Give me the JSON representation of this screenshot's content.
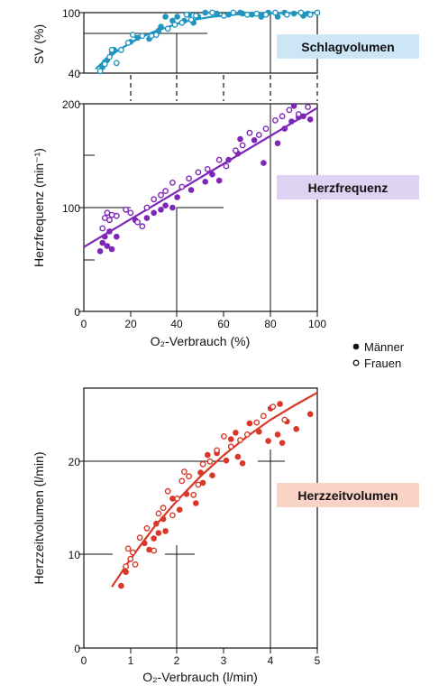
{
  "legend": {
    "men": "Männer",
    "women": "Frauen"
  },
  "chart_data": [
    {
      "type": "scatter",
      "title": "Schlagvolumen",
      "ylabel": "SV (%)",
      "xlabel": "",
      "xlim": [
        0,
        100
      ],
      "ylim": [
        40,
        100
      ],
      "yticks": [
        40,
        100
      ],
      "color": "#1f95c0",
      "badge_bg": "#cce6f5",
      "series": [
        {
          "name": "Männer",
          "marker": "filled",
          "points": [
            [
              8,
              46
            ],
            [
              9,
              51
            ],
            [
              10,
              53
            ],
            [
              12,
              60
            ],
            [
              13,
              63
            ],
            [
              20,
              71
            ],
            [
              23,
              75
            ],
            [
              28,
              74
            ],
            [
              32,
              82
            ],
            [
              33,
              86
            ],
            [
              35,
              96
            ],
            [
              38,
              92
            ],
            [
              40,
              96
            ],
            [
              43,
              92
            ],
            [
              45,
              98
            ],
            [
              47,
              90
            ],
            [
              49,
              96
            ],
            [
              52,
              100
            ],
            [
              57,
              99
            ],
            [
              62,
              98
            ],
            [
              67,
              100
            ],
            [
              68,
              99
            ],
            [
              72,
              98
            ],
            [
              76,
              96
            ],
            [
              79,
              100
            ],
            [
              83,
              96
            ],
            [
              86,
              100
            ],
            [
              90,
              99
            ],
            [
              94,
              97
            ],
            [
              96,
              99
            ]
          ]
        },
        {
          "name": "Frauen",
          "marker": "open",
          "points": [
            [
              7,
              42
            ],
            [
              9,
              49
            ],
            [
              11,
              56
            ],
            [
              12,
              63
            ],
            [
              14,
              50
            ],
            [
              16,
              63
            ],
            [
              19,
              70
            ],
            [
              21,
              78
            ],
            [
              25,
              77
            ],
            [
              29,
              77
            ],
            [
              31,
              78
            ],
            [
              36,
              84
            ],
            [
              39,
              88
            ],
            [
              42,
              90
            ],
            [
              44,
              98
            ],
            [
              46,
              93
            ],
            [
              48,
              97
            ],
            [
              55,
              100
            ],
            [
              60,
              97
            ],
            [
              64,
              100
            ],
            [
              70,
              98
            ],
            [
              74,
              99
            ],
            [
              78,
              98
            ],
            [
              82,
              100
            ],
            [
              87,
              98
            ],
            [
              93,
              100
            ],
            [
              97,
              98
            ],
            [
              100,
              100
            ]
          ]
        }
      ],
      "fit": [
        [
          5,
          44
        ],
        [
          10,
          55
        ],
        [
          15,
          63
        ],
        [
          20,
          70
        ],
        [
          25,
          76
        ],
        [
          30,
          81
        ],
        [
          35,
          85
        ],
        [
          40,
          89
        ],
        [
          45,
          92
        ],
        [
          50,
          94
        ],
        [
          55,
          96
        ],
        [
          60,
          97
        ],
        [
          65,
          98
        ],
        [
          70,
          99
        ],
        [
          80,
          99.5
        ],
        [
          90,
          99.7
        ],
        [
          100,
          100
        ]
      ]
    },
    {
      "type": "scatter",
      "title": "Herzfrequenz",
      "ylabel": "Herzfrequenz (min⁻¹)",
      "xlabel": "O₂-Verbrauch (%)",
      "xlim": [
        0,
        100
      ],
      "ylim": [
        0,
        200
      ],
      "xticks": [
        0,
        20,
        40,
        60,
        80,
        100
      ],
      "yticks": [
        0,
        100,
        200
      ],
      "color": "#7d26b8",
      "badge_bg": "#ddd2f2",
      "series": [
        {
          "name": "Männer",
          "marker": "filled",
          "points": [
            [
              7,
              58
            ],
            [
              8,
              66
            ],
            [
              9,
              72
            ],
            [
              10,
              63
            ],
            [
              11,
              77
            ],
            [
              12,
              60
            ],
            [
              14,
              72
            ],
            [
              22,
              88
            ],
            [
              27,
              90
            ],
            [
              30,
              95
            ],
            [
              33,
              98
            ],
            [
              35,
              102
            ],
            [
              38,
              100
            ],
            [
              40,
              110
            ],
            [
              46,
              117
            ],
            [
              52,
              125
            ],
            [
              55,
              132
            ],
            [
              58,
              126
            ],
            [
              62,
              146
            ],
            [
              66,
              152
            ],
            [
              67,
              166
            ],
            [
              73,
              165
            ],
            [
              77,
              143
            ],
            [
              83,
              162
            ],
            [
              86,
              176
            ],
            [
              89,
              183
            ],
            [
              90,
              198
            ],
            [
              92,
              187
            ],
            [
              94,
              188
            ],
            [
              97,
              185
            ]
          ]
        },
        {
          "name": "Frauen",
          "marker": "open",
          "points": [
            [
              8,
              80
            ],
            [
              9,
              90
            ],
            [
              10,
              95
            ],
            [
              11,
              88
            ],
            [
              12,
              93
            ],
            [
              14,
              92
            ],
            [
              18,
              98
            ],
            [
              20,
              95
            ],
            [
              23,
              86
            ],
            [
              25,
              82
            ],
            [
              27,
              100
            ],
            [
              30,
              108
            ],
            [
              33,
              112
            ],
            [
              35,
              116
            ],
            [
              38,
              124
            ],
            [
              42,
              120
            ],
            [
              45,
              128
            ],
            [
              49,
              134
            ],
            [
              53,
              137
            ],
            [
              58,
              146
            ],
            [
              61,
              140
            ],
            [
              65,
              155
            ],
            [
              68,
              160
            ],
            [
              71,
              172
            ],
            [
              75,
              170
            ],
            [
              78,
              176
            ],
            [
              82,
              184
            ],
            [
              85,
              188
            ],
            [
              88,
              194
            ],
            [
              92,
              190
            ],
            [
              96,
              197
            ]
          ]
        }
      ],
      "fit": [
        [
          0,
          62
        ],
        [
          100,
          196
        ]
      ]
    },
    {
      "type": "scatter",
      "title": "Herzzeitvolumen",
      "ylabel": "Herzzeitvolumen (l/min)",
      "xlabel": "O₂-Verbrauch (l/min)",
      "xlim": [
        0,
        5
      ],
      "ylim": [
        0,
        28
      ],
      "xticks": [
        0,
        1,
        2,
        3,
        4,
        5
      ],
      "yticks": [
        0,
        10,
        20
      ],
      "color": "#d93727",
      "badge_bg": "#f9d3c6",
      "series": [
        {
          "name": "Männer",
          "marker": "filled",
          "points": [
            [
              0.8,
              6.7
            ],
            [
              0.9,
              8.2
            ],
            [
              1.3,
              11.3
            ],
            [
              1.4,
              10.6
            ],
            [
              1.5,
              11.8
            ],
            [
              1.55,
              13.4
            ],
            [
              1.6,
              12.4
            ],
            [
              1.7,
              13.9
            ],
            [
              1.75,
              12.6
            ],
            [
              1.9,
              16.1
            ],
            [
              2.05,
              14.9
            ],
            [
              2.2,
              16.6
            ],
            [
              2.4,
              15.6
            ],
            [
              2.5,
              18.9
            ],
            [
              2.55,
              17.8
            ],
            [
              2.65,
              20.8
            ],
            [
              2.75,
              18.6
            ],
            [
              2.85,
              21.0
            ],
            [
              3.05,
              20.2
            ],
            [
              3.15,
              22.5
            ],
            [
              3.25,
              23.2
            ],
            [
              3.3,
              20.6
            ],
            [
              3.4,
              19.9
            ],
            [
              3.55,
              24.2
            ],
            [
              3.75,
              23.3
            ],
            [
              4.0,
              25.8
            ],
            [
              4.15,
              23.0
            ],
            [
              4.25,
              22.1
            ],
            [
              4.35,
              24.4
            ],
            [
              4.55,
              23.6
            ],
            [
              4.85,
              25.2
            ],
            [
              4.2,
              26.3
            ],
            [
              3.95,
              22.3
            ]
          ]
        },
        {
          "name": "Frauen",
          "marker": "open",
          "points": [
            [
              0.9,
              8.8
            ],
            [
              0.95,
              10.7
            ],
            [
              1.0,
              9.6
            ],
            [
              1.05,
              10.3
            ],
            [
              1.1,
              9.0
            ],
            [
              1.2,
              11.9
            ],
            [
              1.35,
              12.9
            ],
            [
              1.5,
              10.5
            ],
            [
              1.6,
              14.5
            ],
            [
              1.7,
              15.1
            ],
            [
              1.8,
              16.9
            ],
            [
              1.9,
              14.3
            ],
            [
              2.0,
              16.1
            ],
            [
              2.1,
              18.0
            ],
            [
              2.15,
              19.0
            ],
            [
              2.25,
              18.5
            ],
            [
              2.35,
              16.5
            ],
            [
              2.45,
              17.6
            ],
            [
              2.55,
              19.8
            ],
            [
              2.7,
              20.1
            ],
            [
              2.85,
              21.3
            ],
            [
              3.0,
              22.8
            ],
            [
              3.15,
              21.7
            ],
            [
              3.35,
              22.4
            ],
            [
              3.5,
              23.0
            ],
            [
              3.7,
              24.3
            ],
            [
              3.85,
              25.0
            ],
            [
              4.05,
              26.0
            ],
            [
              4.3,
              24.6
            ]
          ]
        }
      ],
      "fit": [
        [
          0.6,
          6.6
        ],
        [
          1.0,
          9.6
        ],
        [
          1.5,
          13.0
        ],
        [
          2.0,
          15.9
        ],
        [
          2.5,
          18.5
        ],
        [
          3.0,
          20.8
        ],
        [
          3.5,
          22.8
        ],
        [
          4.0,
          24.6
        ],
        [
          4.5,
          26.1
        ],
        [
          5.0,
          27.5
        ]
      ]
    }
  ]
}
